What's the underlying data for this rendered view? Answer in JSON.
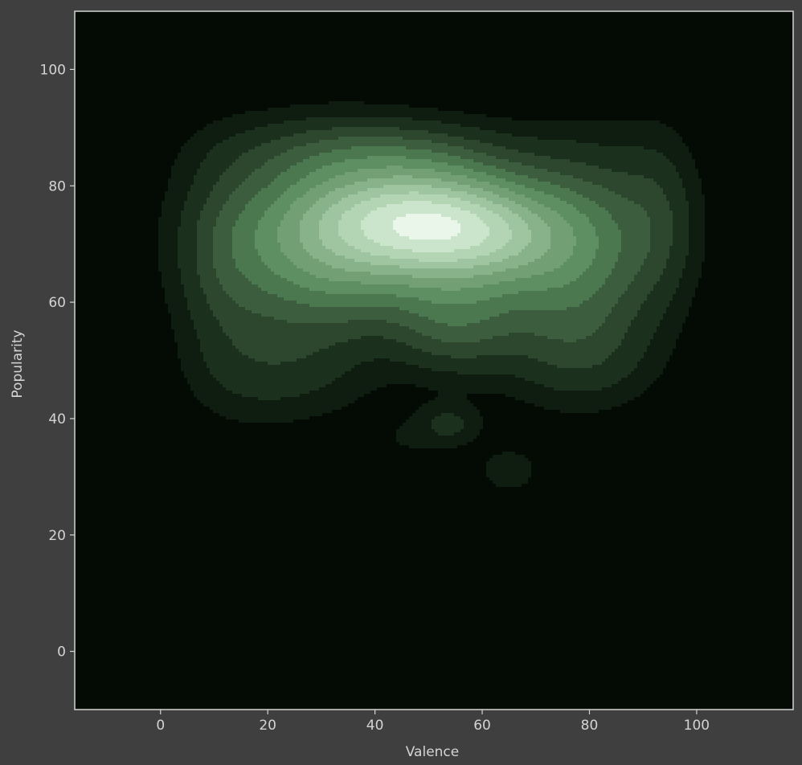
{
  "chart_data": {
    "type": "kde-density",
    "title": "",
    "xlabel": "Valence",
    "ylabel": "Popularity",
    "xlim": [
      -16,
      118
    ],
    "ylim": [
      -10,
      110
    ],
    "xticks": [
      0,
      20,
      40,
      60,
      80,
      100
    ],
    "yticks": [
      0,
      20,
      40,
      60,
      80,
      100
    ],
    "grid": false,
    "legend": "none",
    "colors": {
      "figure_background": "#3f3f3f",
      "plot_background": "#040b04",
      "axis_frame": "#d4d4d4",
      "text": "#d4d4d4",
      "fill_levels": [
        "#0f1d10",
        "#1c311d",
        "#2c472d",
        "#3c5e3e",
        "#4c7850",
        "#5e8f62",
        "#739f75",
        "#88b38a",
        "#9ec59f",
        "#b3d5b4",
        "#cbe5cc",
        "#e9f6e9"
      ]
    },
    "peak": {
      "x": 49,
      "y": 74
    },
    "components": [
      {
        "x": 49,
        "y": 74,
        "sx": 13,
        "sy": 6.5,
        "w": 1.0
      },
      {
        "x": 62,
        "y": 71,
        "sx": 11,
        "sy": 6,
        "w": 0.55
      },
      {
        "x": 35,
        "y": 72,
        "sx": 15,
        "sy": 9,
        "w": 0.45
      },
      {
        "x": 28,
        "y": 68,
        "sx": 12,
        "sy": 11,
        "w": 0.3
      },
      {
        "x": 80,
        "y": 72,
        "sx": 10,
        "sy": 10,
        "w": 0.3
      },
      {
        "x": 55,
        "y": 57,
        "sx": 8,
        "sy": 6,
        "w": 0.3
      },
      {
        "x": 75,
        "y": 60,
        "sx": 10,
        "sy": 9,
        "w": 0.22
      },
      {
        "x": 12,
        "y": 65,
        "sx": 6,
        "sy": 13,
        "w": 0.12
      },
      {
        "x": 93,
        "y": 75,
        "sx": 5,
        "sy": 10,
        "w": 0.12
      },
      {
        "x": 40,
        "y": 86,
        "sx": 18,
        "sy": 4,
        "w": 0.15
      },
      {
        "x": 22,
        "y": 48,
        "sx": 10,
        "sy": 6,
        "w": 0.12
      },
      {
        "x": 80,
        "y": 50,
        "sx": 9,
        "sy": 6,
        "w": 0.1
      },
      {
        "x": 54,
        "y": 39,
        "sx": 4,
        "sy": 2.5,
        "w": 0.13
      },
      {
        "x": 65,
        "y": 31,
        "sx": 5,
        "sy": 3.5,
        "w": 0.08
      },
      {
        "x": 45,
        "y": 36,
        "sx": 6,
        "sy": 4,
        "w": 0.05
      }
    ],
    "levels": [
      0.035,
      0.075,
      0.13,
      0.19,
      0.26,
      0.34,
      0.43,
      0.53,
      0.63,
      0.73,
      0.84,
      0.95
    ]
  }
}
